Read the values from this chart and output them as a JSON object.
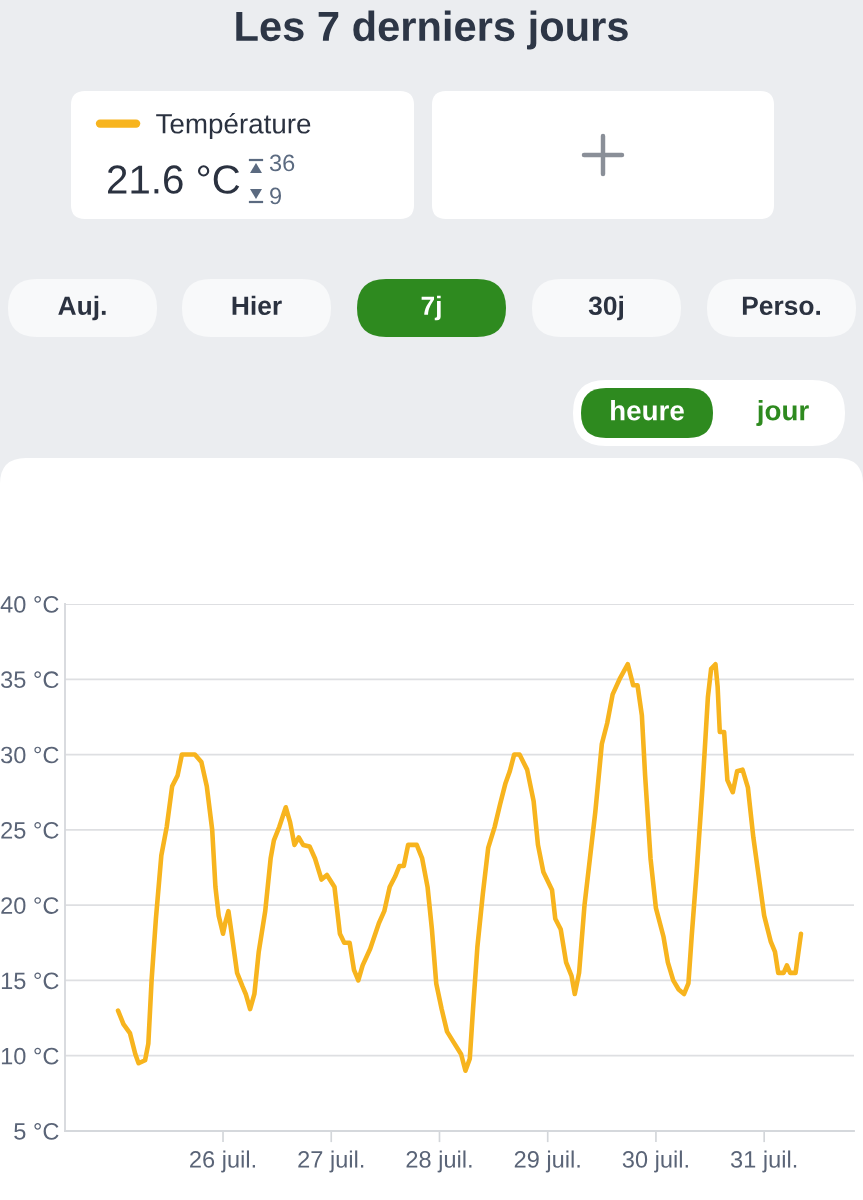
{
  "chart_data": {
    "type": "line",
    "title": "Les 7 derniers jours",
    "annotations": [
      "21.6 °C",
      "36",
      "9",
      "Auj.",
      "Hier",
      "7j",
      "30j",
      "Perso.",
      "heure",
      "jour"
    ],
    "x": [
      25.03,
      25.08,
      25.14,
      25.19,
      25.22,
      25.28,
      25.31,
      25.34,
      25.38,
      25.43,
      25.48,
      25.53,
      25.58,
      25.62,
      25.74,
      25.8,
      25.85,
      25.9,
      25.93,
      25.96,
      26.0,
      26.02,
      26.05,
      26.08,
      26.13,
      26.18,
      26.21,
      26.25,
      26.29,
      26.33,
      26.39,
      26.44,
      26.47,
      26.52,
      26.58,
      26.62,
      26.66,
      26.7,
      26.74,
      26.8,
      26.85,
      26.91,
      26.96,
      27.03,
      27.08,
      27.12,
      27.17,
      27.21,
      27.25,
      27.29,
      27.36,
      27.44,
      27.49,
      27.54,
      27.59,
      27.63,
      27.67,
      27.71,
      27.79,
      27.84,
      27.89,
      27.93,
      27.97,
      28.02,
      28.07,
      28.13,
      28.2,
      28.24,
      28.28,
      28.31,
      28.35,
      28.4,
      28.45,
      28.51,
      28.56,
      28.61,
      28.65,
      28.69,
      28.74,
      28.81,
      28.87,
      28.91,
      28.96,
      29.04,
      29.07,
      29.12,
      29.17,
      29.22,
      29.25,
      29.29,
      29.34,
      29.39,
      29.44,
      29.5,
      29.55,
      29.6,
      29.67,
      29.74,
      29.79,
      29.83,
      29.87,
      29.9,
      29.95,
      30.0,
      30.07,
      30.11,
      30.16,
      30.21,
      30.26,
      30.3,
      30.33,
      30.38,
      30.43,
      30.48,
      30.51,
      30.55,
      30.57,
      30.59,
      30.63,
      30.66,
      30.71,
      30.75,
      30.8,
      30.85,
      30.9,
      30.95,
      31.0,
      31.06,
      31.1,
      31.13,
      31.18,
      31.21,
      31.24,
      31.29,
      31.34
    ],
    "series": [
      {
        "name": "Température",
        "color": "#f7b41e",
        "values": [
          13.0,
          12.1,
          11.5,
          10.1,
          9.5,
          9.7,
          10.8,
          15.0,
          19.1,
          23.3,
          25.2,
          27.9,
          28.6,
          30.0,
          30.0,
          29.5,
          27.9,
          25.0,
          21.2,
          19.3,
          18.1,
          18.8,
          19.6,
          18.1,
          15.5,
          14.6,
          14.1,
          13.1,
          14.1,
          16.9,
          19.6,
          23.1,
          24.3,
          25.2,
          26.5,
          25.5,
          24.0,
          24.5,
          24.0,
          23.9,
          23.1,
          21.7,
          22.0,
          21.2,
          18.1,
          17.5,
          17.5,
          15.7,
          15.0,
          16.0,
          17.1,
          18.8,
          19.6,
          21.2,
          21.9,
          22.6,
          22.6,
          24.0,
          24.0,
          23.1,
          21.2,
          18.4,
          14.8,
          13.1,
          11.6,
          10.9,
          10.1,
          9.0,
          9.8,
          13.1,
          17.2,
          20.7,
          23.8,
          25.2,
          26.7,
          28.1,
          28.9,
          30.0,
          30.0,
          29.0,
          26.9,
          24.0,
          22.2,
          21.0,
          19.1,
          18.4,
          16.2,
          15.3,
          14.1,
          15.5,
          20.0,
          23.1,
          26.2,
          30.7,
          32.1,
          34.0,
          35.1,
          36.0,
          34.6,
          34.6,
          32.6,
          28.6,
          23.1,
          19.8,
          17.9,
          16.2,
          15.0,
          14.4,
          14.1,
          14.8,
          17.9,
          22.6,
          27.8,
          33.8,
          35.7,
          36.0,
          34.5,
          31.5,
          31.5,
          28.3,
          27.5,
          28.9,
          29.0,
          27.8,
          24.5,
          21.9,
          19.3,
          17.6,
          16.9,
          15.5,
          15.5,
          16.0,
          15.5,
          15.5,
          18.1
        ]
      }
    ],
    "xlim": [
      24.54,
      31.83
    ],
    "xticks": [
      {
        "value": 26,
        "label": "26 juil."
      },
      {
        "value": 27,
        "label": "27 juil."
      },
      {
        "value": 28,
        "label": "28 juil."
      },
      {
        "value": 29,
        "label": "29 juil."
      },
      {
        "value": 30,
        "label": "30 juil."
      },
      {
        "value": 31,
        "label": "31 juil."
      }
    ],
    "ylim": [
      5,
      40
    ],
    "yticks": [
      {
        "value": 5,
        "label": "5 °C"
      },
      {
        "value": 10,
        "label": "10 °C"
      },
      {
        "value": 15,
        "label": "15 °C"
      },
      {
        "value": 20,
        "label": "20 °C"
      },
      {
        "value": 25,
        "label": "25 °C"
      },
      {
        "value": 30,
        "label": "30 °C"
      },
      {
        "value": 35,
        "label": "35 °C"
      },
      {
        "value": 40,
        "label": "40 °C"
      }
    ],
    "grid": "y",
    "legend": "top left"
  }
}
